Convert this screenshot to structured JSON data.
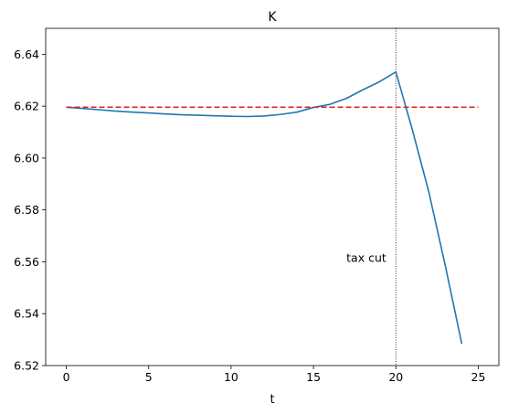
{
  "chart_data": {
    "type": "line",
    "title": "K",
    "xlabel": "t",
    "ylabel": "",
    "xlim": [
      -1.25,
      26.25
    ],
    "ylim": [
      6.52,
      6.65
    ],
    "grid": false,
    "x_ticks": [
      0,
      5,
      10,
      15,
      20,
      25
    ],
    "x_tick_labels": [
      "0",
      "5",
      "10",
      "15",
      "20",
      "25"
    ],
    "y_ticks": [
      6.52,
      6.54,
      6.56,
      6.58,
      6.6,
      6.62,
      6.64
    ],
    "y_tick_labels": [
      "6.52",
      "6.54",
      "6.56",
      "6.58",
      "6.60",
      "6.62",
      "6.64"
    ],
    "series": [
      {
        "color": "#1f77b4",
        "style": "solid",
        "x": [
          0,
          1,
          2,
          3,
          4,
          5,
          6,
          7,
          8,
          9,
          10,
          11,
          12,
          13,
          14,
          15,
          16,
          17,
          18,
          19,
          20,
          21,
          22,
          23,
          24
        ],
        "y": [
          6.6196,
          6.6191,
          6.6186,
          6.6181,
          6.6177,
          6.6174,
          6.617,
          6.6167,
          6.6165,
          6.6163,
          6.6161,
          6.616,
          6.6162,
          6.6168,
          6.6177,
          6.6195,
          6.6207,
          6.623,
          6.6263,
          6.6294,
          6.6332,
          6.6109,
          6.5869,
          6.5585,
          6.5284
        ]
      },
      {
        "color": "#d62728",
        "style": "dashed",
        "x": [
          0,
          25
        ],
        "y": [
          6.6196,
          6.6196
        ]
      }
    ],
    "vline": {
      "x": 20,
      "color": "#000000",
      "style": "dotted"
    },
    "annotations": [
      {
        "text": "tax cut",
        "x": 17,
        "y": 6.56
      }
    ]
  }
}
